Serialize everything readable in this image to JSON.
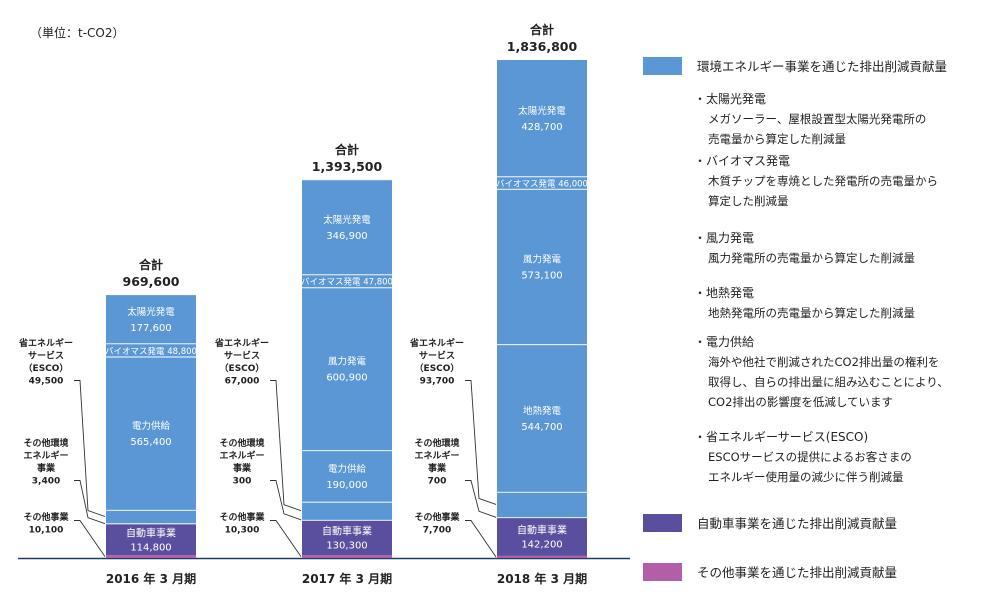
{
  "chart_data": {
    "type": "bar",
    "stacked": true,
    "unit": "（単位：t-CO2）",
    "categories": [
      "2016 年 3 月期",
      "2017 年 3 月期",
      "2018 年 3 月期"
    ],
    "total_label": "合計",
    "totals": [
      "969,600",
      "1,393,500",
      "1,836,800"
    ],
    "total_values": [
      969600,
      1393500,
      1836800
    ],
    "ylim": [
      0,
      1836800
    ],
    "colors": {
      "environment": "#5b97d4",
      "automotive": "#5a4f9e",
      "other": "#b25fa8",
      "axis": "#1f3b66",
      "segment_line": "#ffffff",
      "leader": "#333333"
    },
    "bars": [
      {
        "segments": [
          {
            "key": "other",
            "group": "other",
            "value": 10100,
            "label": "",
            "value_text": ""
          },
          {
            "key": "automotive",
            "group": "automotive",
            "value": 114800,
            "label": "自動車事業",
            "value_text": "114,800"
          },
          {
            "key": "other_env",
            "group": "environment",
            "value": 3400,
            "label": "",
            "value_text": ""
          },
          {
            "key": "esco",
            "group": "environment",
            "value": 49500,
            "label": "",
            "value_text": ""
          },
          {
            "key": "power_supply",
            "group": "environment",
            "value": 565400,
            "label": "電力供給",
            "value_text": "565,400"
          },
          {
            "key": "biomass",
            "group": "environment",
            "value": 48800,
            "label": "バイオマス発電",
            "value_text": "48,800"
          },
          {
            "key": "solar",
            "group": "environment",
            "value": 177600,
            "label": "太陽光発電",
            "value_text": "177,600"
          }
        ],
        "callouts": [
          {
            "segment": "esco",
            "lines": [
              "省エネルギー",
              "サービス",
              "（ESCO）",
              "49,500"
            ]
          },
          {
            "segment": "other_env",
            "lines": [
              "その他環境",
              "エネルギー",
              "事業",
              "3,400"
            ]
          },
          {
            "segment": "other",
            "lines": [
              "その他事業",
              "10,100"
            ]
          }
        ]
      },
      {
        "segments": [
          {
            "key": "other",
            "group": "other",
            "value": 10300,
            "label": "",
            "value_text": ""
          },
          {
            "key": "automotive",
            "group": "automotive",
            "value": 130300,
            "label": "自動車事業",
            "value_text": "130,300"
          },
          {
            "key": "other_env",
            "group": "environment",
            "value": 300,
            "label": "",
            "value_text": ""
          },
          {
            "key": "esco",
            "group": "environment",
            "value": 67000,
            "label": "",
            "value_text": ""
          },
          {
            "key": "power_supply",
            "group": "environment",
            "value": 190000,
            "label": "電力供給",
            "value_text": "190,000"
          },
          {
            "key": "wind",
            "group": "environment",
            "value": 600900,
            "label": "風力発電",
            "value_text": "600,900"
          },
          {
            "key": "biomass",
            "group": "environment",
            "value": 47800,
            "label": "バイオマス発電",
            "value_text": "47,800"
          },
          {
            "key": "solar",
            "group": "environment",
            "value": 346900,
            "label": "太陽光発電",
            "value_text": "346,900"
          }
        ],
        "callouts": [
          {
            "segment": "esco",
            "lines": [
              "省エネルギー",
              "サービス",
              "（ESCO）",
              "67,000"
            ]
          },
          {
            "segment": "other_env",
            "lines": [
              "その他環境",
              "エネルギー",
              "事業",
              "300"
            ]
          },
          {
            "segment": "other",
            "lines": [
              "その他事業",
              "10,300"
            ]
          }
        ]
      },
      {
        "segments": [
          {
            "key": "other",
            "group": "other",
            "value": 7700,
            "label": "",
            "value_text": ""
          },
          {
            "key": "automotive",
            "group": "automotive",
            "value": 142200,
            "label": "自動車事業",
            "value_text": "142,200"
          },
          {
            "key": "other_env",
            "group": "environment",
            "value": 700,
            "label": "",
            "value_text": ""
          },
          {
            "key": "esco",
            "group": "environment",
            "value": 93700,
            "label": "",
            "value_text": ""
          },
          {
            "key": "geothermal",
            "group": "environment",
            "value": 544700,
            "label": "地熱発電",
            "value_text": "544,700"
          },
          {
            "key": "wind",
            "group": "environment",
            "value": 573100,
            "label": "風力発電",
            "value_text": "573,100"
          },
          {
            "key": "biomass",
            "group": "environment",
            "value": 46000,
            "label": "バイオマス発電",
            "value_text": "46,000"
          },
          {
            "key": "solar",
            "group": "environment",
            "value": 428700,
            "label": "太陽光発電",
            "value_text": "428,700"
          }
        ],
        "callouts": [
          {
            "segment": "esco",
            "lines": [
              "省エネルギー",
              "サービス",
              "（ESCO）",
              "93,700"
            ]
          },
          {
            "segment": "other_env",
            "lines": [
              "その他環境",
              "エネルギー",
              "事業",
              "700"
            ]
          },
          {
            "segment": "other",
            "lines": [
              "その他事業",
              "7,700"
            ]
          }
        ]
      }
    ],
    "legend": [
      {
        "group": "environment",
        "label": "環境エネルギー事業を通じた排出削減貢献量",
        "items": [
          {
            "title": "・太陽光発電",
            "lines": [
              "メガソーラー、屋根設置型太陽光発電所の",
              "売電量から算定した削減量"
            ]
          },
          {
            "title": "・バイオマス発電",
            "lines": [
              "木質チップを専焼とした発電所の売電量から",
              "算定した削減量"
            ]
          },
          {
            "title": "・風力発電",
            "lines": [
              "風力発電所の売電量から算定した削減量"
            ]
          },
          {
            "title": "・地熱発電",
            "lines": [
              "地熱発電所の売電量から算定した削減量"
            ]
          },
          {
            "title": "・電力供給",
            "lines": [
              "海外や他社で削減されたCO2排出量の権利を",
              "取得し、自らの排出量に組み込むことにより、",
              "CO2排出の影響度を低減しています"
            ]
          },
          {
            "title": "・省エネルギーサービス(ESCO)",
            "lines": [
              "ESCOサービスの提供によるお客さまの",
              "エネルギー使用量の減少に伴う削減量"
            ]
          }
        ]
      },
      {
        "group": "automotive",
        "label": "自動車事業を通じた排出削減貢献量",
        "items": []
      },
      {
        "group": "other",
        "label": "その他事業を通じた排出削減貢献量",
        "items": []
      }
    ]
  }
}
